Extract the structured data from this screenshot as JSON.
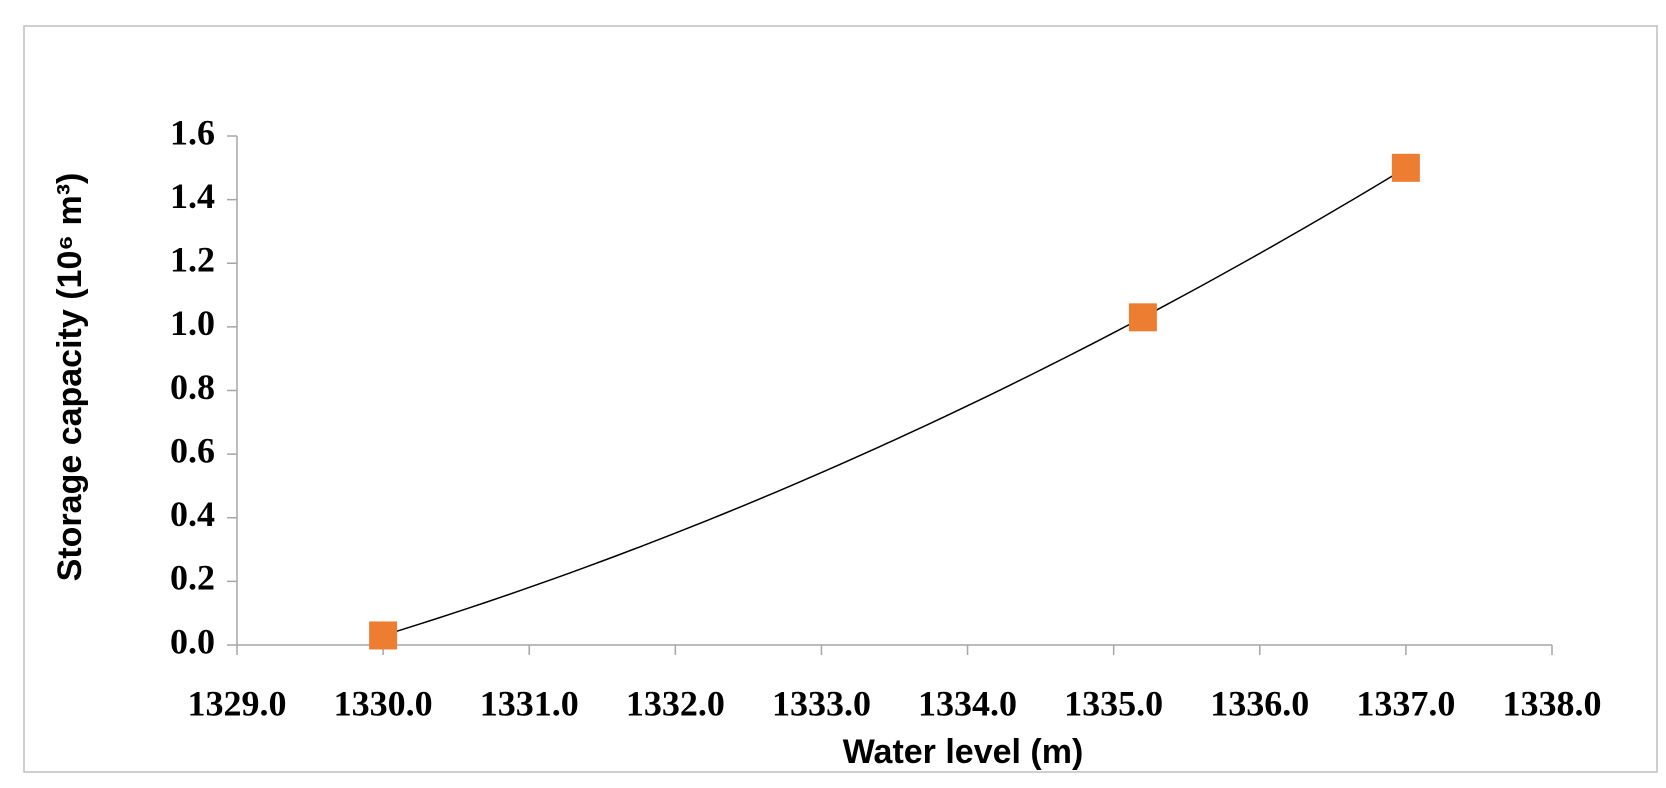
{
  "chart_data": {
    "type": "scatter",
    "y_label": "Storage capacity  (10⁶ m³)",
    "x_label": "Water level (m)",
    "series": [
      {
        "name": "Storage capacity",
        "color": "#ed7d31",
        "x": [
          1330.0,
          1335.2,
          1337.0
        ],
        "values": [
          0.03,
          1.03,
          1.5
        ]
      }
    ],
    "trendline": "polynomial",
    "trendline_color": "#000000",
    "xlim": [
      1329,
      1338
    ],
    "xticks": [
      {
        "value": 1329,
        "label": "1329.0"
      },
      {
        "value": 1330,
        "label": "1330.0"
      },
      {
        "value": 1331,
        "label": "1331.0"
      },
      {
        "value": 1332,
        "label": "1332.0"
      },
      {
        "value": 1333,
        "label": "1333.0"
      },
      {
        "value": 1334,
        "label": "1334.0"
      },
      {
        "value": 1335,
        "label": "1335.0"
      },
      {
        "value": 1336,
        "label": "1336.0"
      },
      {
        "value": 1337,
        "label": "1337.0"
      },
      {
        "value": 1338,
        "label": "1338.0"
      }
    ],
    "ylim": [
      0,
      1.6
    ],
    "yticks": [
      {
        "value": 0,
        "label": "0.0"
      },
      0.2,
      0.4,
      0.6,
      0.8,
      {
        "value": 1,
        "label": "1.0"
      },
      1.2,
      1.4,
      1.6
    ],
    "grid": false
  }
}
